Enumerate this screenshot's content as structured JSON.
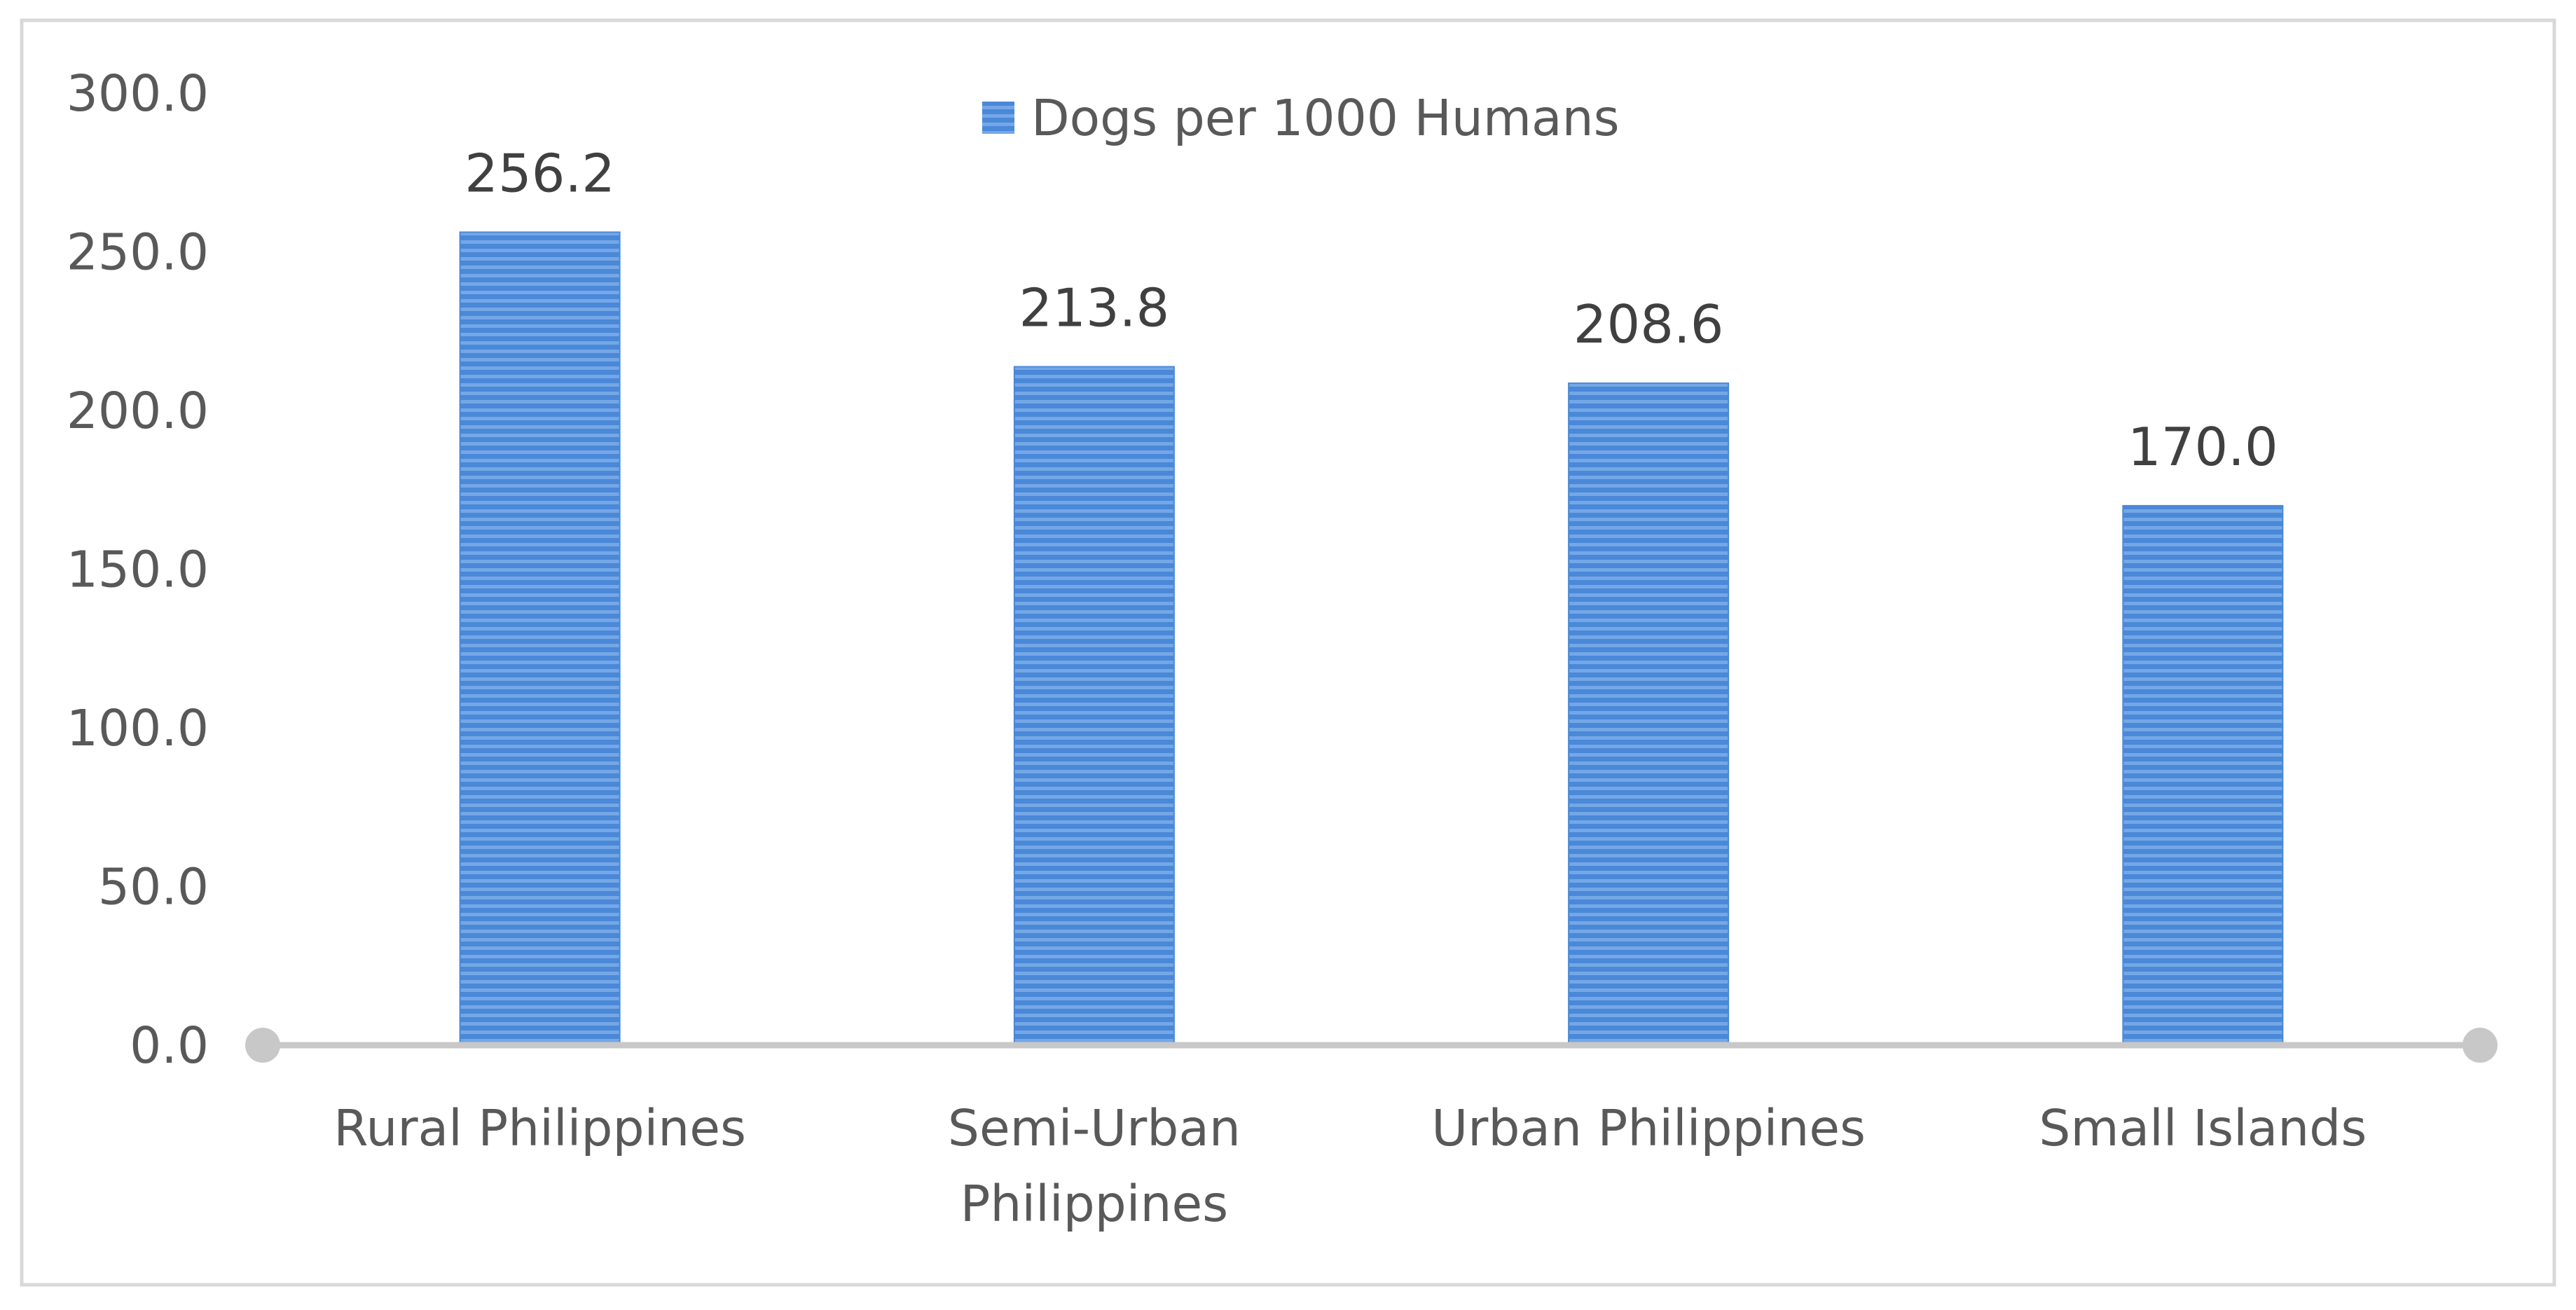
{
  "chart_data": {
    "type": "bar",
    "categories": [
      "Rural Philippines",
      "Semi-Urban Philippines",
      "Urban Philippines",
      "Small Islands"
    ],
    "category_lines": [
      [
        "Rural Philippines"
      ],
      [
        "Semi-Urban",
        "Philippines"
      ],
      [
        "Urban Philippines"
      ],
      [
        "Small Islands"
      ]
    ],
    "series": [
      {
        "name": "Dogs per 1000 Humans",
        "values": [
          256.2,
          213.8,
          208.6,
          170.0
        ],
        "labels": [
          "256.2",
          "213.8",
          "208.6",
          "170.0"
        ],
        "color": "#4a88d8"
      }
    ],
    "title": "",
    "xlabel": "",
    "ylabel": "",
    "ylim": [
      0,
      300
    ],
    "yticks": [
      "0.0",
      "50.0",
      "100.0",
      "150.0",
      "200.0",
      "250.0",
      "300.0"
    ],
    "grid": false,
    "legend": "top-center",
    "colors": {
      "bar": "#4a88d8",
      "bar_stripe": "#6ea2e4",
      "axis": "#c8c8c8",
      "border": "#d9d9d9"
    }
  }
}
